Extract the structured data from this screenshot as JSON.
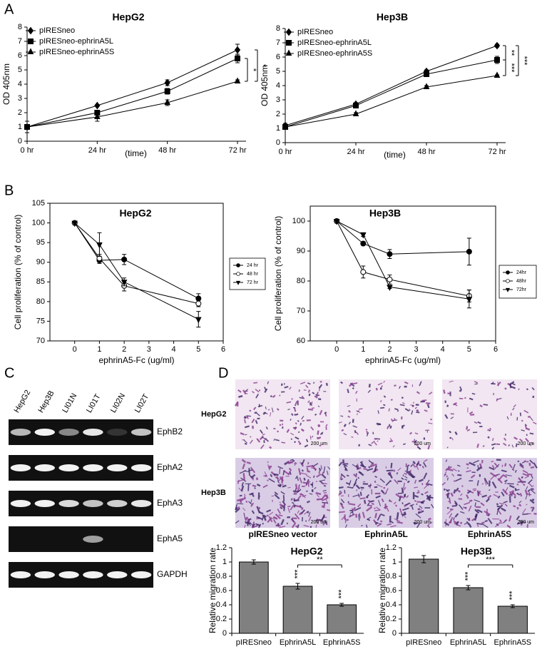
{
  "panel_labels": [
    "A",
    "B",
    "C",
    "D"
  ],
  "chart_data": [
    {
      "type": "line",
      "title": "HepG2",
      "y_label": "OD 405nm",
      "x_label": "(time)",
      "categories": [
        "0 hr",
        "24 hr",
        "48 hr",
        "72 hr"
      ],
      "ylim": [
        0,
        8
      ],
      "yticks": [
        0,
        1,
        2,
        3,
        4,
        5,
        6,
        7,
        8
      ],
      "series": [
        {
          "name": "pIRESneo",
          "color": "#000000",
          "marker": "diamond",
          "values": [
            1.0,
            2.5,
            4.1,
            6.4
          ],
          "errors": [
            0.1,
            0.05,
            0.2,
            0.4
          ]
        },
        {
          "name": "pIRESneo-ephrinA5L",
          "color": "#000000",
          "marker": "square",
          "values": [
            1.0,
            2.0,
            3.5,
            5.8
          ],
          "errors": [
            0.1,
            0.1,
            0.2,
            0.3
          ]
        },
        {
          "name": "pIRESneo-ephrinA5S",
          "color": "#000000",
          "marker": "triangle",
          "values": [
            1.0,
            1.7,
            2.7,
            4.2
          ],
          "errors": [
            0.4,
            0.3,
            0.2,
            0.1
          ]
        }
      ],
      "annotations": [
        "*",
        "*"
      ]
    },
    {
      "type": "line",
      "title": "Hep3B",
      "y_label": "OD 405nm",
      "x_label": "(time)",
      "categories": [
        "0 hr",
        "24 hr",
        "48 hr",
        "72 hr"
      ],
      "ylim": [
        0,
        8
      ],
      "yticks": [
        0,
        1,
        2,
        3,
        4,
        5,
        6,
        7,
        8
      ],
      "series": [
        {
          "name": "pIRESneo",
          "color": "#000000",
          "marker": "diamond",
          "values": [
            1.2,
            2.7,
            5.0,
            6.8
          ],
          "errors": [
            0.15,
            0.1,
            0.1,
            0.1
          ]
        },
        {
          "name": "pIRESneo-ephrinA5L",
          "color": "#000000",
          "marker": "square",
          "values": [
            1.1,
            2.6,
            4.8,
            5.8
          ],
          "errors": [
            0.15,
            0.1,
            0.15,
            0.25
          ]
        },
        {
          "name": "pIRESneo-ephrinA5S",
          "color": "#000000",
          "marker": "triangle",
          "values": [
            1.1,
            2.0,
            3.9,
            4.7
          ],
          "errors": [
            0.15,
            0.1,
            0.1,
            0.05
          ]
        }
      ],
      "annotations": [
        "**",
        "***",
        "***"
      ]
    },
    {
      "type": "line",
      "title": "HepG2",
      "y_label": "Cell proliferation (% of control)",
      "x_label": "ephrinA5-Fc (ug/ml)",
      "x": [
        0,
        1,
        2,
        5
      ],
      "xlim": [
        -1,
        6
      ],
      "xticks": [
        0,
        1,
        2,
        3,
        4,
        5,
        6
      ],
      "ylim": [
        70,
        105
      ],
      "yticks": [
        70,
        75,
        80,
        85,
        90,
        95,
        100,
        105
      ],
      "series": [
        {
          "name": "24 hr",
          "color": "#000000",
          "marker": "circle",
          "values": [
            100,
            90.5,
            90.7,
            80.8
          ],
          "errors": [
            0,
            0.8,
            1.3,
            1.2
          ]
        },
        {
          "name": "48 hr",
          "color": "#000000",
          "marker": "circle-open",
          "values": [
            100,
            91,
            84,
            79.5
          ],
          "errors": [
            0,
            1,
            1.3,
            0.8
          ]
        },
        {
          "name": "72 hr",
          "color": "#000000",
          "marker": "triangle-down",
          "values": [
            100,
            94.5,
            85,
            75.5
          ],
          "errors": [
            0,
            3,
            1,
            2
          ]
        }
      ]
    },
    {
      "type": "line",
      "title": "Hep3B",
      "y_label": "Cell proliferation (% of control)",
      "x_label": "ephrinA5-Fc (ug/ml)",
      "x": [
        0,
        1,
        2,
        5
      ],
      "xlim": [
        -1,
        6
      ],
      "xticks": [
        0,
        1,
        2,
        3,
        4,
        5,
        6
      ],
      "ylim": [
        60,
        105
      ],
      "yticks": [
        60,
        70,
        80,
        90,
        100
      ],
      "series": [
        {
          "name": "24hr",
          "color": "#000000",
          "marker": "circle",
          "values": [
            100,
            92.5,
            89,
            89.8
          ],
          "errors": [
            0,
            0.6,
            1.5,
            4.5
          ]
        },
        {
          "name": "48hr",
          "color": "#000000",
          "marker": "circle-open",
          "values": [
            100,
            83,
            80.5,
            75
          ],
          "errors": [
            0,
            2,
            1.5,
            2
          ]
        },
        {
          "name": "72hr",
          "color": "#000000",
          "marker": "triangle-down",
          "values": [
            100,
            95.5,
            78,
            74
          ],
          "errors": [
            0,
            0.6,
            0.5,
            3
          ]
        }
      ]
    },
    {
      "type": "bar",
      "title": "HepG2",
      "y_label": "Relative migration rate",
      "categories": [
        "pIRESneo",
        "EphrinA5L",
        "EphrinA5S"
      ],
      "values": [
        1.0,
        0.66,
        0.4
      ],
      "errors": [
        0.03,
        0.04,
        0.02
      ],
      "color": "#808080",
      "ylim": [
        0,
        1.2
      ],
      "yticks": [
        0,
        0.2,
        0.4,
        0.6,
        0.8,
        1,
        1.2
      ],
      "annotations": [
        "***",
        "***",
        "**"
      ]
    },
    {
      "type": "bar",
      "title": "Hep3B",
      "y_label": "Relative migration rate",
      "categories": [
        "pIRESneo",
        "EphrinA5L",
        "EphrinA5S"
      ],
      "values": [
        1.04,
        0.64,
        0.38
      ],
      "errors": [
        0.05,
        0.03,
        0.02
      ],
      "color": "#808080",
      "ylim": [
        0,
        1.2
      ],
      "yticks": [
        0,
        0.2,
        0.4,
        0.6,
        0.8,
        1,
        1.2
      ],
      "annotations": [
        "***",
        "***",
        "***"
      ]
    }
  ],
  "gel": {
    "lanes": [
      "HepG2",
      "Hep3B",
      "LI01N",
      "LI01T",
      "LI02N",
      "LI02T"
    ],
    "genes": [
      "EphB2",
      "EphA2",
      "EphA3",
      "EphA5",
      "GAPDH"
    ]
  },
  "invasion": {
    "rows": [
      "HepG2",
      "Hep3B"
    ],
    "columns": [
      "pIRESneo vector",
      "EphrinA5L",
      "EphrinA5S"
    ],
    "scale": "200 um"
  }
}
